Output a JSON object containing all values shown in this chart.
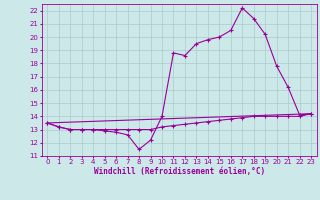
{
  "xlabel": "Windchill (Refroidissement éolien,°C)",
  "bg_color": "#cce8e8",
  "grid_color": "#aacccc",
  "line_color": "#990099",
  "xlim": [
    -0.5,
    23.5
  ],
  "ylim": [
    11,
    22.5
  ],
  "yticks": [
    11,
    12,
    13,
    14,
    15,
    16,
    17,
    18,
    19,
    20,
    21,
    22
  ],
  "xticks": [
    0,
    1,
    2,
    3,
    4,
    5,
    6,
    7,
    8,
    9,
    10,
    11,
    12,
    13,
    14,
    15,
    16,
    17,
    18,
    19,
    20,
    21,
    22,
    23
  ],
  "series1_x": [
    0,
    1,
    2,
    3,
    4,
    5,
    6,
    7,
    8,
    9,
    10,
    11,
    12,
    13,
    14,
    15,
    16,
    17,
    18,
    19,
    20,
    21,
    22,
    23
  ],
  "series1_y": [
    13.5,
    13.2,
    13.0,
    13.0,
    13.0,
    12.9,
    12.8,
    12.6,
    11.5,
    12.2,
    14.0,
    18.8,
    18.6,
    19.5,
    19.8,
    20.0,
    20.5,
    22.2,
    21.4,
    20.2,
    17.8,
    16.2,
    14.1,
    14.2
  ],
  "series2_x": [
    0,
    1,
    2,
    3,
    4,
    5,
    6,
    7,
    8,
    9,
    10,
    11,
    12,
    13,
    14,
    15,
    16,
    17,
    18,
    19,
    20,
    21,
    22,
    23
  ],
  "series2_y": [
    13.5,
    13.2,
    13.0,
    13.0,
    13.0,
    13.0,
    13.0,
    13.0,
    13.0,
    13.0,
    13.2,
    13.3,
    13.4,
    13.5,
    13.6,
    13.7,
    13.8,
    13.9,
    14.0,
    14.0,
    14.0,
    14.0,
    14.0,
    14.2
  ],
  "series3_x": [
    0,
    23
  ],
  "series3_y": [
    13.5,
    14.2
  ],
  "marker": "+"
}
